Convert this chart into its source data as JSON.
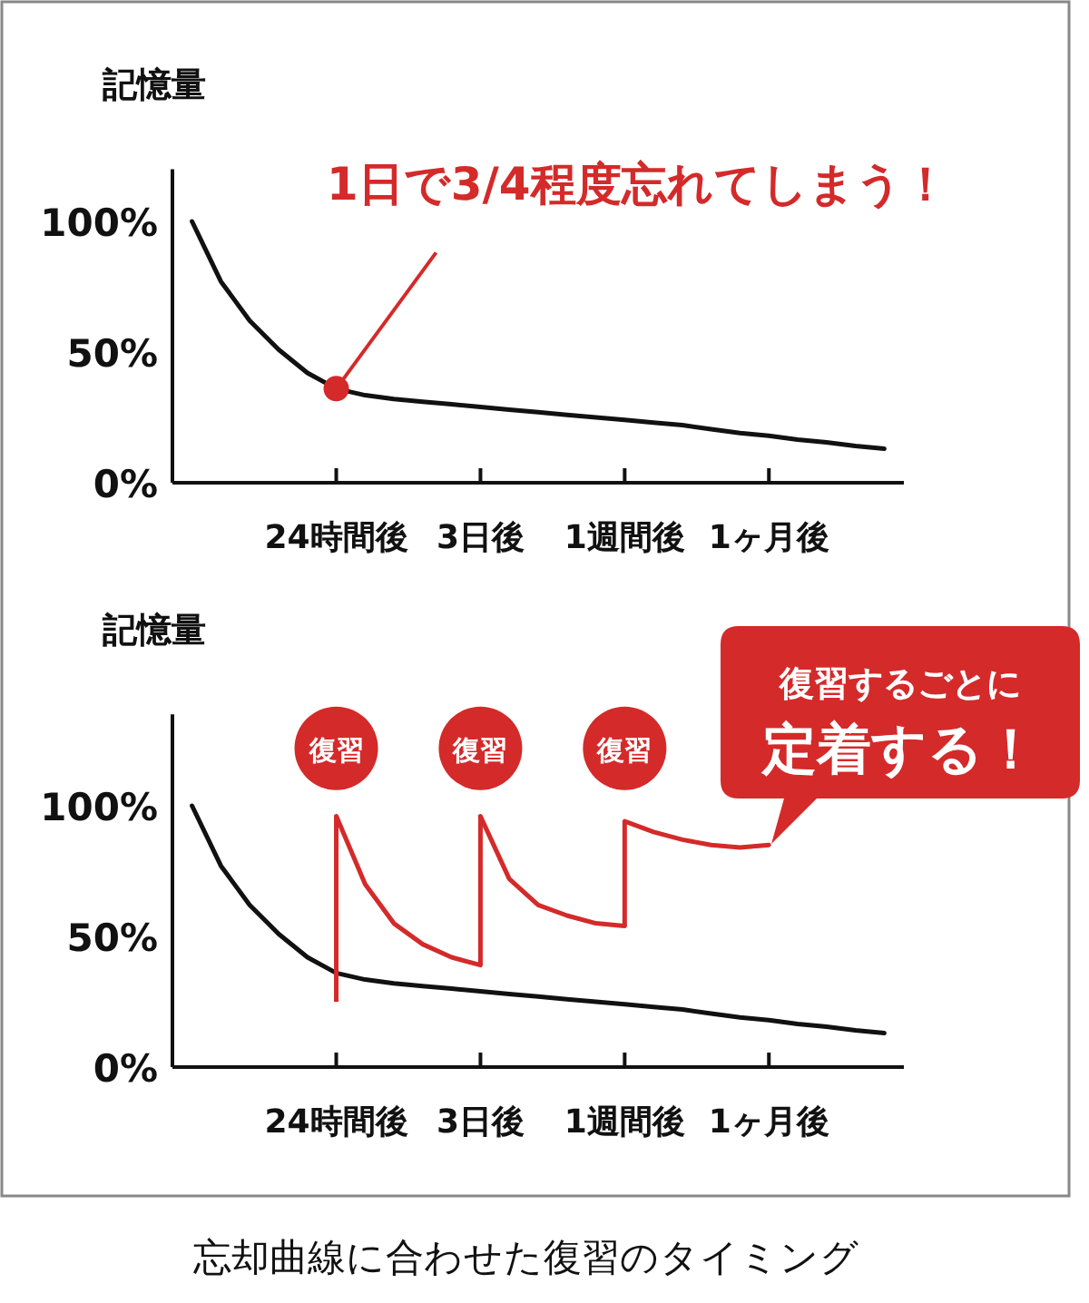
{
  "chart_data": [
    {
      "type": "line",
      "ylabel": "記憶量",
      "ylim": [
        0,
        120
      ],
      "categories": [
        null,
        null,
        null,
        null,
        null,
        "24時間後",
        null,
        null,
        null,
        null,
        "3日後",
        null,
        null,
        null,
        null,
        "1週間後",
        null,
        null,
        null,
        null,
        "1ヶ月後",
        null,
        null,
        null,
        null
      ],
      "yticks": [
        {
          "value": 0,
          "label": "0%"
        },
        {
          "value": 50,
          "label": "50%"
        },
        {
          "value": 100,
          "label": "100%"
        }
      ],
      "series": [
        {
          "color": "#111111",
          "values": [
            100,
            77,
            62,
            51,
            42,
            36,
            33.5,
            32,
            31,
            30,
            29,
            28,
            27,
            26,
            25,
            24,
            23,
            22,
            20.5,
            19,
            18,
            16.5,
            15.5,
            14,
            13
          ]
        },
        {
          "type": "scatter",
          "color": "#d42a2a",
          "values": [
            null,
            null,
            null,
            null,
            null,
            36,
            null,
            null,
            null,
            null,
            null,
            null,
            null,
            null,
            null,
            null,
            null,
            null,
            null,
            null,
            null,
            null,
            null,
            null,
            null
          ]
        }
      ],
      "annotations": [
        {
          "text": "1日で3/4程度忘れてしまう！",
          "x": "24時間後",
          "y": 36
        }
      ]
    },
    {
      "type": "line",
      "ylabel": "記憶量",
      "ylim": [
        0,
        135
      ],
      "categories": [
        null,
        null,
        null,
        null,
        null,
        "24時間後",
        null,
        null,
        null,
        null,
        "3日後",
        null,
        null,
        null,
        null,
        "1週間後",
        null,
        null,
        null,
        null,
        "1ヶ月後",
        null,
        null,
        null,
        null
      ],
      "yticks": [
        {
          "value": 0,
          "label": "0%"
        },
        {
          "value": 50,
          "label": "50%"
        },
        {
          "value": 100,
          "label": "100%"
        }
      ],
      "series": [
        {
          "color": "#111111",
          "values": [
            100,
            77,
            62,
            51,
            42,
            36,
            33.5,
            32,
            31,
            30,
            29,
            28,
            27,
            26,
            25,
            24,
            23,
            22,
            20.5,
            19,
            18,
            16.5,
            15.5,
            14,
            13
          ]
        },
        {
          "color": "#d42a2a",
          "values": [
            null,
            null,
            null,
            null,
            null,
            96,
            70,
            55,
            47,
            42,
            39,
            null,
            null,
            null,
            null,
            null,
            null,
            null,
            null,
            null,
            null,
            null,
            null,
            null,
            null
          ],
          "errors": [
            null,
            null,
            null,
            null,
            null,
            [
              25,
              96
            ],
            null,
            null,
            null,
            null,
            null,
            null,
            null,
            null,
            null,
            null,
            null,
            null,
            null,
            null,
            null,
            null,
            null,
            null,
            null
          ]
        },
        {
          "color": "#d42a2a",
          "values": [
            null,
            null,
            null,
            null,
            null,
            null,
            null,
            null,
            null,
            null,
            96,
            72,
            62,
            58,
            55,
            54,
            null,
            null,
            null,
            null,
            null,
            null,
            null,
            null,
            null
          ],
          "errors": [
            null,
            null,
            null,
            null,
            null,
            null,
            null,
            null,
            null,
            null,
            [
              39,
              96
            ],
            null,
            null,
            null,
            null,
            null,
            null,
            null,
            null,
            null,
            null,
            null,
            null,
            null,
            null
          ]
        },
        {
          "color": "#d42a2a",
          "values": [
            null,
            null,
            null,
            null,
            null,
            null,
            null,
            null,
            null,
            null,
            null,
            null,
            null,
            null,
            null,
            94,
            90,
            87,
            85,
            84,
            85,
            null,
            null,
            null,
            null
          ],
          "errors": [
            null,
            null,
            null,
            null,
            null,
            null,
            null,
            null,
            null,
            null,
            null,
            null,
            null,
            null,
            null,
            [
              54,
              94
            ],
            null,
            null,
            null,
            null,
            null,
            null,
            null,
            null,
            null
          ]
        }
      ],
      "annotations": [
        "復習",
        "復習",
        "復習",
        "復習するごとに",
        "定着する！",
        "忘却曲線に合わせた復習のタイミング"
      ]
    }
  ]
}
